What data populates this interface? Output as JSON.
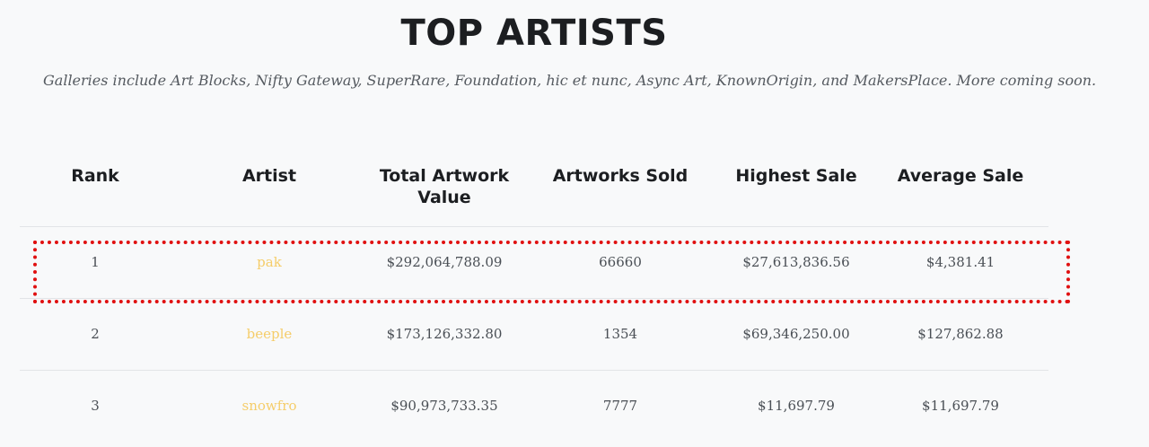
{
  "header": {
    "title": "TOP ARTISTS",
    "subtitle": "Galleries include Art Blocks, Nifty Gateway, SuperRare, Foundation, hic et nunc, Async Art, KnownOrigin, and MakersPlace. More coming soon."
  },
  "table": {
    "columns": [
      "Rank",
      "Artist",
      "Total Artwork Value",
      "Artworks Sold",
      "Highest Sale",
      "Average Sale"
    ],
    "rows": [
      {
        "rank": "1",
        "artist": "pak",
        "total_value": "$292,064,788.09",
        "sold": "66660",
        "highest": "$27,613,836.56",
        "average": "$4,381.41"
      },
      {
        "rank": "2",
        "artist": "beeple",
        "total_value": "$173,126,332.80",
        "sold": "1354",
        "highest": "$69,346,250.00",
        "average": "$127,862.88"
      },
      {
        "rank": "3",
        "artist": "snowfro",
        "total_value": "$90,973,733.35",
        "sold": "7777",
        "highest": "$11,697.79",
        "average": "$11,697.79"
      }
    ]
  },
  "colors": {
    "artist_link": "#f5cd6a",
    "highlight_border": "#e01010",
    "background": "#f8f9fa"
  }
}
